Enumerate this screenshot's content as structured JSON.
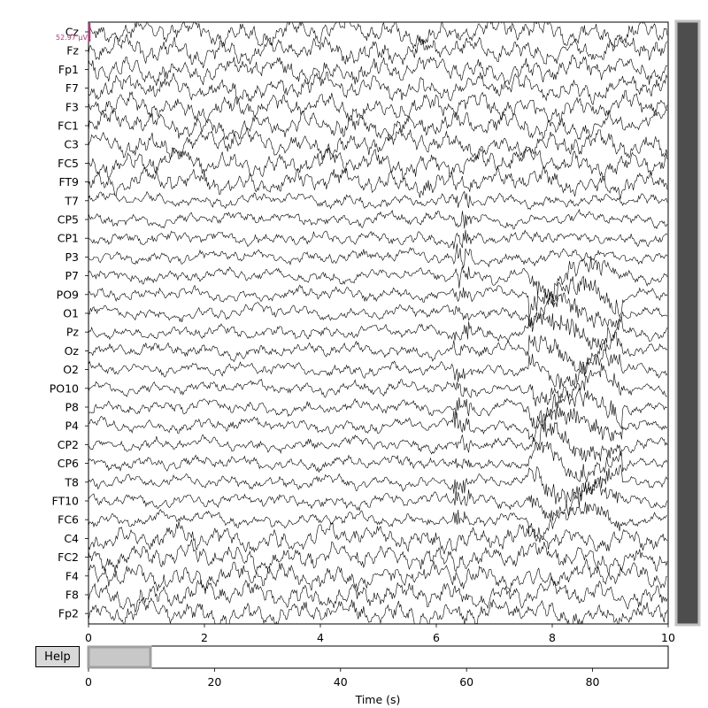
{
  "channels": [
    "Cz",
    "Fz",
    "Fp1",
    "F7",
    "F3",
    "FC1",
    "C3",
    "FC5",
    "FT9",
    "T7",
    "CP5",
    "CP1",
    "P3",
    "P7",
    "PO9",
    "O1",
    "Pz",
    "Oz",
    "O2",
    "PO10",
    "P8",
    "P4",
    "CP2",
    "CP6",
    "T8",
    "FT10",
    "FC6",
    "C4",
    "FC2",
    "F4",
    "F8",
    "Fp2"
  ],
  "scale_label": "52.97 µV",
  "main_time_axis": {
    "ticks": [
      "0",
      "2",
      "4",
      "6",
      "8",
      "10"
    ],
    "range_s": [
      0,
      10
    ]
  },
  "help_button": {
    "label": "Help"
  },
  "overview_axis": {
    "ticks": [
      "0",
      "20",
      "40",
      "60",
      "80"
    ],
    "label": "Time (s)",
    "range_s": [
      0,
      92
    ],
    "window_s": [
      0,
      10
    ]
  },
  "colors": {
    "trace": "#000000",
    "scale_bar": "#b03a7a",
    "scrollbar_thumb": "#4d4d4d",
    "window_selector": "#c8c8c8",
    "frame": "#000000"
  }
}
